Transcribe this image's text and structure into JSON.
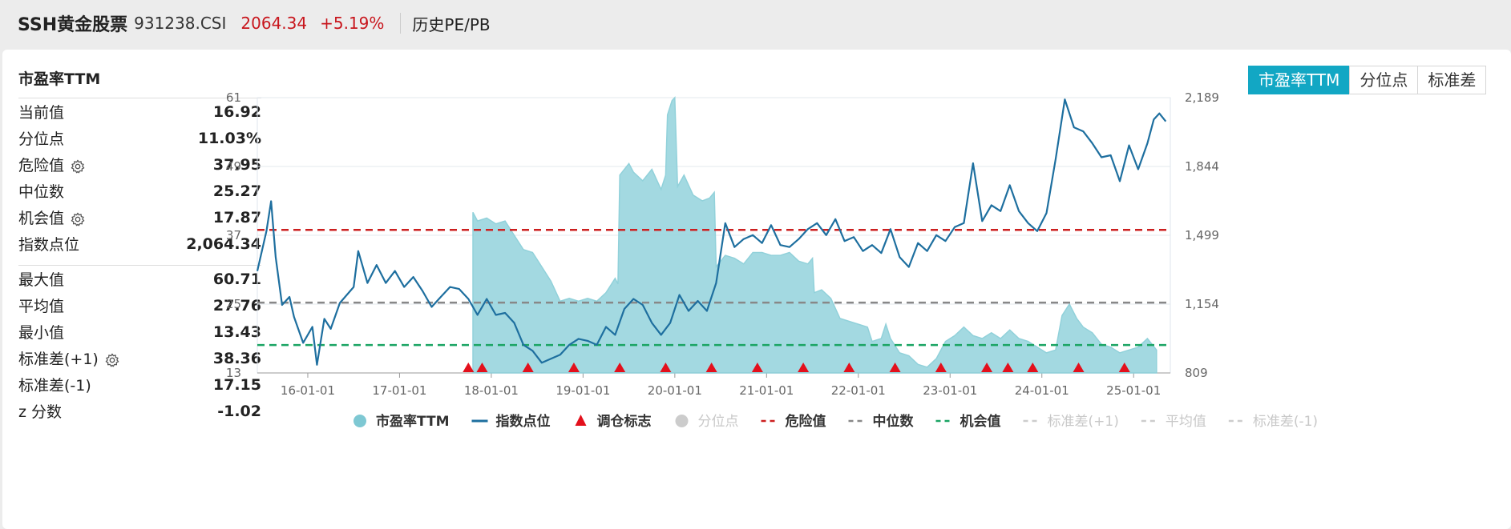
{
  "header": {
    "name": "SSH黄金股票",
    "code": "931238.CSI",
    "price": "2064.34",
    "change": "+5.19%",
    "history": "历史PE/PB"
  },
  "card": {
    "title": "市盈率TTM",
    "tabs": [
      "市盈率TTM",
      "分位点",
      "标准差"
    ]
  },
  "stats_top": [
    {
      "label": "当前值",
      "value": "16.92",
      "gear": false
    },
    {
      "label": "分位点",
      "value": "11.03%",
      "gear": false
    },
    {
      "label": "危险值",
      "value": "37.95",
      "gear": true
    },
    {
      "label": "中位数",
      "value": "25.27",
      "gear": false
    },
    {
      "label": "机会值",
      "value": "17.87",
      "gear": true
    },
    {
      "label": "指数点位",
      "value": "2,064.34",
      "gear": false
    }
  ],
  "stats_bottom": [
    {
      "label": "最大值",
      "value": "60.71",
      "gear": false
    },
    {
      "label": "平均值",
      "value": "27.76",
      "gear": false
    },
    {
      "label": "最小值",
      "value": "13.43",
      "gear": false
    },
    {
      "label": "标准差(+1)",
      "value": "38.36",
      "gear": true
    },
    {
      "label": "标准差(-1)",
      "value": "17.15",
      "gear": false
    },
    {
      "label": "z 分数",
      "value": "-1.02",
      "gear": false
    }
  ],
  "colors": {
    "accent": "#12a7c4",
    "pe_fill": "#9fd8e0",
    "pe_line": "#8ccfd9",
    "index_line": "#1e6f9f",
    "danger": "#cc1f1f",
    "median": "#888888",
    "opportunity": "#1aa463",
    "marker": "#e3101c"
  },
  "chart_data": {
    "type": "area",
    "x_ticks": [
      "16-01-01",
      "17-01-01",
      "18-01-01",
      "19-01-01",
      "20-01-01",
      "21-01-01",
      "22-01-01",
      "23-01-01",
      "24-01-01",
      "25-01-01"
    ],
    "y_left_ticks": [
      "13",
      "25",
      "37",
      "49",
      "61"
    ],
    "y_right_ticks": [
      "809",
      "1,154",
      "1,499",
      "1,844",
      "2,189"
    ],
    "ylim_left": [
      13,
      61
    ],
    "ylim_right": [
      809,
      2189
    ],
    "x_range": [
      2015.45,
      2025.4
    ],
    "reference_lines": {
      "danger": 37.95,
      "median": 25.27,
      "opportunity": 17.87
    },
    "series": [
      {
        "name": "市盈率TTM",
        "kind": "area",
        "axis": "left",
        "points": [
          [
            2017.8,
            41.0
          ],
          [
            2017.85,
            39.5
          ],
          [
            2017.95,
            40.0
          ],
          [
            2018.05,
            39.0
          ],
          [
            2018.15,
            39.5
          ],
          [
            2018.25,
            37.0
          ],
          [
            2018.35,
            34.5
          ],
          [
            2018.45,
            34.0
          ],
          [
            2018.55,
            31.5
          ],
          [
            2018.65,
            29.0
          ],
          [
            2018.75,
            25.5
          ],
          [
            2018.85,
            26.0
          ],
          [
            2018.95,
            25.5
          ],
          [
            2019.05,
            26.0
          ],
          [
            2019.15,
            25.5
          ],
          [
            2019.25,
            27.0
          ],
          [
            2019.35,
            29.5
          ],
          [
            2019.38,
            28.5
          ],
          [
            2019.4,
            47.5
          ],
          [
            2019.5,
            49.5
          ],
          [
            2019.55,
            48.0
          ],
          [
            2019.65,
            46.5
          ],
          [
            2019.75,
            48.5
          ],
          [
            2019.85,
            45.0
          ],
          [
            2019.9,
            47.5
          ],
          [
            2019.92,
            58.0
          ],
          [
            2019.97,
            60.5
          ],
          [
            2020.0,
            61.0
          ],
          [
            2020.03,
            45.5
          ],
          [
            2020.1,
            47.5
          ],
          [
            2020.2,
            44.0
          ],
          [
            2020.3,
            43.0
          ],
          [
            2020.38,
            43.5
          ],
          [
            2020.43,
            44.5
          ],
          [
            2020.45,
            31.5
          ],
          [
            2020.55,
            33.5
          ],
          [
            2020.65,
            33.0
          ],
          [
            2020.75,
            32.0
          ],
          [
            2020.85,
            34.0
          ],
          [
            2020.95,
            34.0
          ],
          [
            2021.05,
            33.5
          ],
          [
            2021.15,
            33.5
          ],
          [
            2021.25,
            34.0
          ],
          [
            2021.35,
            32.5
          ],
          [
            2021.45,
            32.0
          ],
          [
            2021.5,
            33.0
          ],
          [
            2021.52,
            27.0
          ],
          [
            2021.6,
            27.5
          ],
          [
            2021.7,
            26.0
          ],
          [
            2021.8,
            22.5
          ],
          [
            2021.9,
            22.0
          ],
          [
            2022.0,
            21.5
          ],
          [
            2022.1,
            21.0
          ],
          [
            2022.15,
            18.5
          ],
          [
            2022.25,
            19.0
          ],
          [
            2022.3,
            21.5
          ],
          [
            2022.35,
            19.0
          ],
          [
            2022.45,
            16.5
          ],
          [
            2022.55,
            16.0
          ],
          [
            2022.65,
            14.5
          ],
          [
            2022.75,
            14.0
          ],
          [
            2022.85,
            15.5
          ],
          [
            2022.95,
            18.5
          ],
          [
            2023.05,
            19.5
          ],
          [
            2023.15,
            21.0
          ],
          [
            2023.25,
            19.5
          ],
          [
            2023.35,
            19.0
          ],
          [
            2023.45,
            20.0
          ],
          [
            2023.55,
            19.0
          ],
          [
            2023.65,
            20.5
          ],
          [
            2023.75,
            19.0
          ],
          [
            2023.85,
            18.5
          ],
          [
            2023.95,
            17.5
          ],
          [
            2024.05,
            16.5
          ],
          [
            2024.15,
            17.0
          ],
          [
            2024.22,
            23.0
          ],
          [
            2024.3,
            25.0
          ],
          [
            2024.38,
            22.5
          ],
          [
            2024.45,
            21.0
          ],
          [
            2024.55,
            20.0
          ],
          [
            2024.65,
            18.0
          ],
          [
            2024.75,
            17.5
          ],
          [
            2024.85,
            16.5
          ],
          [
            2024.95,
            17.0
          ],
          [
            2025.05,
            17.5
          ],
          [
            2025.15,
            19.0
          ],
          [
            2025.25,
            17.0
          ]
        ]
      },
      {
        "name": "指数点位",
        "kind": "line",
        "axis": "right",
        "points": [
          [
            2015.45,
            1320
          ],
          [
            2015.55,
            1520
          ],
          [
            2015.6,
            1670
          ],
          [
            2015.65,
            1390
          ],
          [
            2015.72,
            1150
          ],
          [
            2015.8,
            1190
          ],
          [
            2015.85,
            1090
          ],
          [
            2015.95,
            960
          ],
          [
            2016.05,
            1040
          ],
          [
            2016.1,
            850
          ],
          [
            2016.18,
            1080
          ],
          [
            2016.25,
            1030
          ],
          [
            2016.35,
            1160
          ],
          [
            2016.5,
            1240
          ],
          [
            2016.55,
            1420
          ],
          [
            2016.65,
            1260
          ],
          [
            2016.75,
            1350
          ],
          [
            2016.85,
            1260
          ],
          [
            2016.95,
            1320
          ],
          [
            2017.05,
            1240
          ],
          [
            2017.15,
            1290
          ],
          [
            2017.25,
            1220
          ],
          [
            2017.35,
            1140
          ],
          [
            2017.45,
            1190
          ],
          [
            2017.55,
            1240
          ],
          [
            2017.65,
            1230
          ],
          [
            2017.75,
            1180
          ],
          [
            2017.85,
            1100
          ],
          [
            2017.95,
            1180
          ],
          [
            2018.05,
            1100
          ],
          [
            2018.15,
            1110
          ],
          [
            2018.25,
            1060
          ],
          [
            2018.35,
            950
          ],
          [
            2018.45,
            920
          ],
          [
            2018.55,
            860
          ],
          [
            2018.65,
            880
          ],
          [
            2018.75,
            900
          ],
          [
            2018.85,
            950
          ],
          [
            2018.95,
            980
          ],
          [
            2019.05,
            970
          ],
          [
            2019.15,
            950
          ],
          [
            2019.25,
            1040
          ],
          [
            2019.35,
            1000
          ],
          [
            2019.45,
            1130
          ],
          [
            2019.55,
            1180
          ],
          [
            2019.65,
            1150
          ],
          [
            2019.75,
            1060
          ],
          [
            2019.85,
            1000
          ],
          [
            2019.95,
            1060
          ],
          [
            2020.05,
            1200
          ],
          [
            2020.15,
            1120
          ],
          [
            2020.25,
            1170
          ],
          [
            2020.35,
            1120
          ],
          [
            2020.45,
            1260
          ],
          [
            2020.55,
            1560
          ],
          [
            2020.65,
            1440
          ],
          [
            2020.75,
            1480
          ],
          [
            2020.85,
            1500
          ],
          [
            2020.95,
            1460
          ],
          [
            2021.05,
            1550
          ],
          [
            2021.15,
            1450
          ],
          [
            2021.25,
            1440
          ],
          [
            2021.35,
            1480
          ],
          [
            2021.45,
            1530
          ],
          [
            2021.55,
            1560
          ],
          [
            2021.65,
            1500
          ],
          [
            2021.75,
            1580
          ],
          [
            2021.85,
            1470
          ],
          [
            2021.95,
            1490
          ],
          [
            2022.05,
            1420
          ],
          [
            2022.15,
            1450
          ],
          [
            2022.25,
            1410
          ],
          [
            2022.35,
            1530
          ],
          [
            2022.45,
            1390
          ],
          [
            2022.55,
            1340
          ],
          [
            2022.65,
            1460
          ],
          [
            2022.75,
            1420
          ],
          [
            2022.85,
            1500
          ],
          [
            2022.95,
            1470
          ],
          [
            2023.05,
            1540
          ],
          [
            2023.15,
            1560
          ],
          [
            2023.25,
            1860
          ],
          [
            2023.35,
            1570
          ],
          [
            2023.45,
            1650
          ],
          [
            2023.55,
            1620
          ],
          [
            2023.65,
            1750
          ],
          [
            2023.75,
            1620
          ],
          [
            2023.85,
            1560
          ],
          [
            2023.95,
            1520
          ],
          [
            2024.05,
            1610
          ],
          [
            2024.15,
            1880
          ],
          [
            2024.25,
            2180
          ],
          [
            2024.35,
            2040
          ],
          [
            2024.45,
            2020
          ],
          [
            2024.55,
            1960
          ],
          [
            2024.65,
            1890
          ],
          [
            2024.75,
            1900
          ],
          [
            2024.85,
            1770
          ],
          [
            2024.95,
            1950
          ],
          [
            2025.05,
            1830
          ],
          [
            2025.15,
            1960
          ],
          [
            2025.22,
            2080
          ],
          [
            2025.28,
            2110
          ],
          [
            2025.35,
            2070
          ]
        ]
      }
    ],
    "rebalance_markers_x": [
      2017.75,
      2017.9,
      2018.4,
      2018.9,
      2019.4,
      2019.9,
      2020.4,
      2020.9,
      2021.4,
      2021.9,
      2022.4,
      2022.9,
      2023.4,
      2023.63,
      2023.9,
      2024.4,
      2024.9
    ],
    "legend": [
      {
        "label": "市盈率TTM",
        "symbol": "dot",
        "color": "#7ec8d3",
        "active": true
      },
      {
        "label": "指数点位",
        "symbol": "line",
        "color": "#1e6f9f",
        "active": true
      },
      {
        "label": "调仓标志",
        "symbol": "triangle",
        "color": "#e3101c",
        "active": true
      },
      {
        "label": "分位点",
        "symbol": "dot",
        "color": "#cccccc",
        "active": false
      },
      {
        "label": "危险值",
        "symbol": "dash",
        "color": "#cc1f1f",
        "active": true
      },
      {
        "label": "中位数",
        "symbol": "dash",
        "color": "#888888",
        "active": true
      },
      {
        "label": "机会值",
        "symbol": "dash",
        "color": "#1aa463",
        "active": true
      },
      {
        "label": "标准差(+1)",
        "symbol": "dash",
        "color": "#cccccc",
        "active": false
      },
      {
        "label": "平均值",
        "symbol": "dash",
        "color": "#cccccc",
        "active": false
      },
      {
        "label": "标准差(-1)",
        "symbol": "dash",
        "color": "#cccccc",
        "active": false
      }
    ]
  }
}
